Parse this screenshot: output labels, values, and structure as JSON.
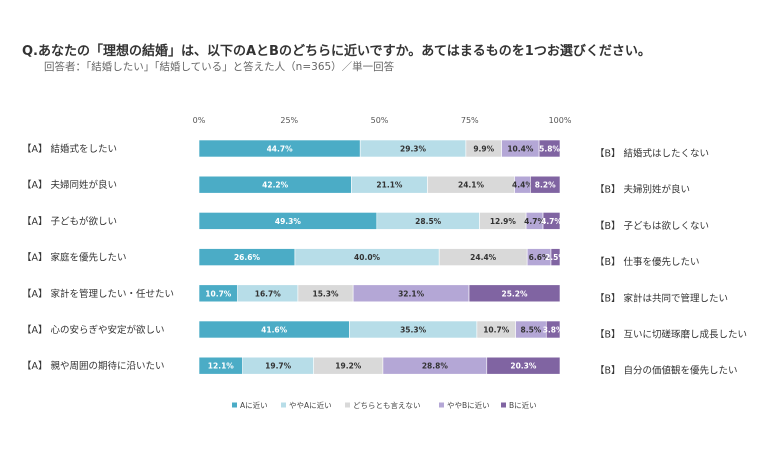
{
  "header": {
    "question": "Q.あなたの「理想の結婚」は、以下のAとBのどちらに近いですか。あてはまるものを1つお選びください。",
    "respondents": "回答者：「結婚したい」「結婚している」と答えた人（n=365）／単一回答"
  },
  "chart_data": {
    "type": "bar",
    "stacked": "horizontal-100",
    "x_ticks": [
      "0%",
      "25%",
      "50%",
      "75%",
      "100%"
    ],
    "xlim": [
      0,
      100
    ],
    "categories_left": [
      "【A】 結婚式をしたい",
      "【A】 夫婦同姓が良い",
      "【A】 子どもが欲しい",
      "【A】 家庭を優先したい",
      "【A】 家計を管理したい・任せたい",
      "【A】 心の安らぎや安定が欲しい",
      "【A】 親や周囲の期待に沿いたい"
    ],
    "categories_right": [
      "【B】 結婚式はしたくない",
      "【B】 夫婦別姓が良い",
      "【B】 子どもは欲しくない",
      "【B】 仕事を優先したい",
      "【B】 家計は共同で管理したい",
      "【B】 互いに切磋琢磨し成長したい",
      "【B】 自分の価値観を優先したい"
    ],
    "series": [
      {
        "name": "Aに近い",
        "color": "#4BACC6",
        "text_color": "#ffffff",
        "values": [
          44.7,
          42.2,
          49.3,
          26.6,
          10.7,
          41.6,
          12.1
        ]
      },
      {
        "name": "ややAに近い",
        "color": "#B7DDE8",
        "text_color": "#333333",
        "values": [
          29.3,
          21.1,
          28.5,
          40.0,
          16.7,
          35.3,
          19.7
        ]
      },
      {
        "name": "どちらとも言えない",
        "color": "#D9D9D9",
        "text_color": "#333333",
        "values": [
          9.9,
          24.1,
          12.9,
          24.4,
          15.3,
          10.7,
          19.2
        ]
      },
      {
        "name": "ややBに近い",
        "color": "#B4A7D6",
        "text_color": "#333333",
        "values": [
          10.4,
          4.4,
          4.7,
          6.6,
          32.1,
          8.5,
          28.8
        ]
      },
      {
        "name": "Bに近い",
        "color": "#8064A2",
        "text_color": "#ffffff",
        "values": [
          5.8,
          8.2,
          4.7,
          2.5,
          25.2,
          3.8,
          20.3
        ]
      }
    ],
    "legend_position": "bottom"
  }
}
